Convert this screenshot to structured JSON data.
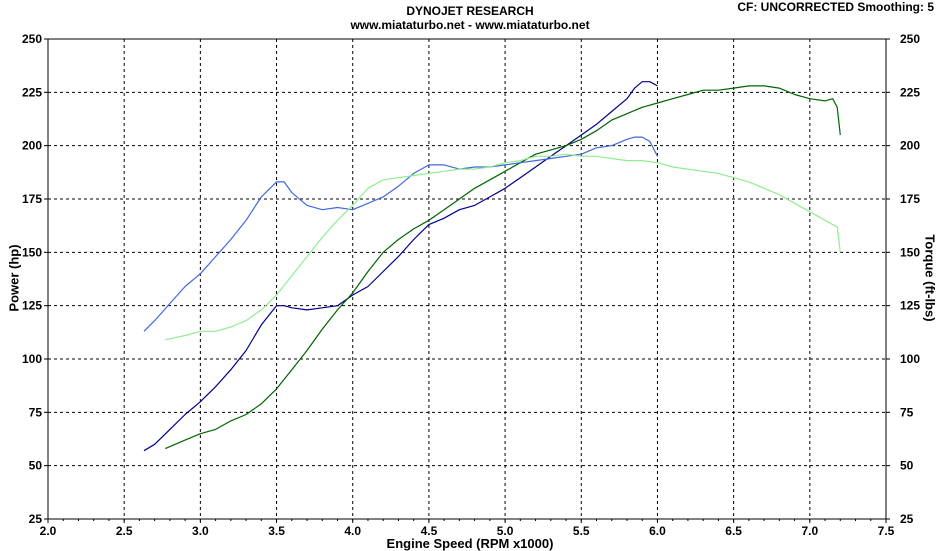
{
  "header": {
    "title_line1": "DYNOJET RESEARCH",
    "title_line2": "www.miataturbo.net - www.miataturbo.net",
    "correction": "CF: UNCORRECTED  Smoothing: 5"
  },
  "chart_data": {
    "type": "line",
    "xlabel": "Engine Speed (RPM x1000)",
    "ylabel": "Power (hp)",
    "y2label": "Torque (ft-lbs)",
    "xlim": [
      2.0,
      7.5
    ],
    "ylim": [
      25,
      250
    ],
    "y2lim": [
      25,
      250
    ],
    "xticks": [
      "2.0",
      "2.5",
      "3.0",
      "3.5",
      "4.0",
      "4.5",
      "5.0",
      "5.5",
      "6.0",
      "6.5",
      "7.0",
      "7.5"
    ],
    "yticks": [
      "25",
      "50",
      "75",
      "100",
      "125",
      "150",
      "175",
      "200",
      "225",
      "250"
    ],
    "grid": true,
    "series": [
      {
        "color": "#00008b",
        "kind": "power",
        "axis": "left",
        "x": [
          2.63,
          2.7,
          2.8,
          2.9,
          3.0,
          3.1,
          3.2,
          3.3,
          3.4,
          3.5,
          3.55,
          3.6,
          3.7,
          3.8,
          3.9,
          4.0,
          4.1,
          4.2,
          4.3,
          4.4,
          4.5,
          4.6,
          4.7,
          4.8,
          4.9,
          5.0,
          5.1,
          5.2,
          5.3,
          5.4,
          5.5,
          5.6,
          5.7,
          5.8,
          5.85,
          5.9,
          5.95,
          6.0
        ],
        "y": [
          57,
          60,
          67,
          74,
          80,
          87,
          95,
          104,
          116,
          125,
          125,
          124,
          123,
          124,
          125,
          130,
          134,
          141,
          148,
          156,
          163,
          166,
          170,
          172,
          176,
          180,
          185,
          190,
          195,
          200,
          205,
          210,
          216,
          222,
          227,
          230,
          230,
          228
        ]
      },
      {
        "color": "#006400",
        "kind": "power",
        "axis": "left",
        "x": [
          2.77,
          2.9,
          3.0,
          3.1,
          3.2,
          3.3,
          3.4,
          3.5,
          3.6,
          3.7,
          3.8,
          3.9,
          4.0,
          4.1,
          4.2,
          4.3,
          4.4,
          4.5,
          4.6,
          4.7,
          4.8,
          4.9,
          5.0,
          5.1,
          5.2,
          5.3,
          5.4,
          5.5,
          5.6,
          5.7,
          5.8,
          5.9,
          6.0,
          6.1,
          6.2,
          6.3,
          6.4,
          6.5,
          6.6,
          6.7,
          6.8,
          6.9,
          7.0,
          7.1,
          7.15,
          7.18,
          7.2
        ],
        "y": [
          58,
          62,
          65,
          67,
          71,
          74,
          79,
          86,
          95,
          104,
          114,
          123,
          131,
          141,
          150,
          156,
          161,
          165,
          170,
          175,
          180,
          184,
          188,
          192,
          196,
          198,
          200,
          203,
          207,
          212,
          215,
          218,
          220,
          222,
          224,
          226,
          226,
          227,
          228,
          228,
          227,
          224,
          222,
          221,
          222,
          218,
          205
        ]
      },
      {
        "color": "#4169e1",
        "kind": "torque",
        "axis": "right",
        "x": [
          2.63,
          2.7,
          2.8,
          2.9,
          3.0,
          3.1,
          3.2,
          3.3,
          3.4,
          3.5,
          3.55,
          3.6,
          3.7,
          3.8,
          3.9,
          4.0,
          4.1,
          4.2,
          4.3,
          4.4,
          4.5,
          4.6,
          4.7,
          4.8,
          4.9,
          5.0,
          5.1,
          5.2,
          5.3,
          5.4,
          5.5,
          5.6,
          5.7,
          5.8,
          5.85,
          5.9,
          5.95,
          6.0
        ],
        "y": [
          113,
          118,
          126,
          134,
          140,
          148,
          156,
          165,
          176,
          183,
          183,
          178,
          172,
          170,
          171,
          170,
          173,
          176,
          181,
          187,
          191,
          191,
          189,
          190,
          190,
          191,
          192,
          193,
          194,
          195,
          196,
          199,
          200,
          203,
          204,
          204,
          202,
          195
        ]
      },
      {
        "color": "#90ee90",
        "kind": "torque",
        "axis": "right",
        "x": [
          2.77,
          2.9,
          3.0,
          3.1,
          3.2,
          3.3,
          3.4,
          3.5,
          3.6,
          3.7,
          3.8,
          3.9,
          4.0,
          4.1,
          4.2,
          4.3,
          4.4,
          4.5,
          4.6,
          4.7,
          4.8,
          4.9,
          5.0,
          5.1,
          5.2,
          5.3,
          5.4,
          5.5,
          5.6,
          5.7,
          5.8,
          5.9,
          6.0,
          6.1,
          6.2,
          6.3,
          6.4,
          6.5,
          6.6,
          6.7,
          6.8,
          6.9,
          7.0,
          7.1,
          7.15,
          7.18,
          7.2
        ],
        "y": [
          109,
          111,
          113,
          113,
          115,
          118,
          123,
          130,
          139,
          148,
          157,
          165,
          172,
          180,
          184,
          185,
          186,
          187,
          188,
          189,
          189,
          190,
          192,
          193,
          195,
          195,
          196,
          195,
          195,
          194,
          193,
          193,
          192,
          190,
          189,
          188,
          187,
          185,
          183,
          180,
          177,
          173,
          169,
          165,
          163,
          162,
          150
        ]
      }
    ]
  }
}
